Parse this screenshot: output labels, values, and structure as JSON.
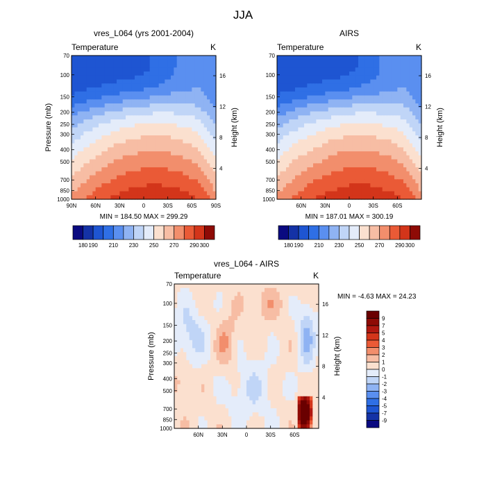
{
  "figure": {
    "title": "JJA"
  },
  "chart_data": [
    {
      "type": "heatmap",
      "title": "vres_L064 (yrs 2001-2004)",
      "left_label": "Temperature",
      "unit_label": "K",
      "ylabel": "Pressure (mb)",
      "ylabel_right": "Height (km)",
      "xlim": [
        -90,
        90
      ],
      "ylim": [
        1000,
        70
      ],
      "x_ticks": [
        {
          "value": -90,
          "label": "90N"
        },
        {
          "value": -60,
          "label": "60N"
        },
        {
          "value": -30,
          "label": "30N"
        },
        {
          "value": 0,
          "label": "0"
        },
        {
          "value": 30,
          "label": "30S"
        },
        {
          "value": 60,
          "label": "60S"
        },
        {
          "value": 90,
          "label": "90S"
        }
      ],
      "y_ticks": [
        {
          "value": 70,
          "label": "70"
        },
        {
          "value": 100,
          "label": "100"
        },
        {
          "value": 150,
          "label": "150"
        },
        {
          "value": 200,
          "label": "200"
        },
        {
          "value": 250,
          "label": "250"
        },
        {
          "value": 300,
          "label": "300"
        },
        {
          "value": 400,
          "label": "400"
        },
        {
          "value": 500,
          "label": "500"
        },
        {
          "value": 700,
          "label": "700"
        },
        {
          "value": 850,
          "label": "850"
        },
        {
          "value": 1000,
          "label": "1000"
        }
      ],
      "right_ticks": [
        {
          "value": 4,
          "label": "4"
        },
        {
          "value": 8,
          "label": "8"
        },
        {
          "value": 12,
          "label": "12"
        },
        {
          "value": 16,
          "label": "16"
        }
      ],
      "stats": "MIN = 184.50   MAX = 299.29",
      "min": 184.5,
      "max": 299.29,
      "levels": [
        180,
        190,
        200,
        210,
        220,
        230,
        240,
        250,
        260,
        270,
        280,
        290,
        300
      ],
      "colorbar_labels": [
        {
          "level_index": 0,
          "label": "180"
        },
        {
          "level_index": 1,
          "label": "190"
        },
        {
          "level_index": 3,
          "label": "210"
        },
        {
          "level_index": 5,
          "label": "230"
        },
        {
          "level_index": 7,
          "label": "250"
        },
        {
          "level_index": 9,
          "label": "270"
        },
        {
          "level_index": 11,
          "label": "290"
        },
        {
          "level_index": 12,
          "label": "300"
        }
      ]
    },
    {
      "type": "heatmap",
      "title": "AIRS",
      "left_label": "Temperature",
      "unit_label": "K",
      "ylabel": "",
      "ylabel_right": "Height (km)",
      "xlim": [
        -90,
        90
      ],
      "ylim": [
        1000,
        70
      ],
      "x_ticks": [
        {
          "value": -60,
          "label": "60N"
        },
        {
          "value": -30,
          "label": "30N"
        },
        {
          "value": 0,
          "label": "0"
        },
        {
          "value": 30,
          "label": "30S"
        },
        {
          "value": 60,
          "label": "60S"
        }
      ],
      "y_ticks": [
        {
          "value": 70,
          "label": "70"
        },
        {
          "value": 100,
          "label": "100"
        },
        {
          "value": 150,
          "label": "150"
        },
        {
          "value": 200,
          "label": "200"
        },
        {
          "value": 250,
          "label": "250"
        },
        {
          "value": 300,
          "label": "300"
        },
        {
          "value": 400,
          "label": "400"
        },
        {
          "value": 500,
          "label": "500"
        },
        {
          "value": 700,
          "label": "700"
        },
        {
          "value": 850,
          "label": "850"
        },
        {
          "value": 1000,
          "label": "1000"
        }
      ],
      "right_ticks": [
        {
          "value": 4,
          "label": "4"
        },
        {
          "value": 8,
          "label": "8"
        },
        {
          "value": 12,
          "label": "12"
        },
        {
          "value": 16,
          "label": "16"
        }
      ],
      "stats": "MIN = 187.01   MAX = 300.19",
      "min": 187.01,
      "max": 300.19,
      "levels": [
        180,
        190,
        200,
        210,
        220,
        230,
        240,
        250,
        260,
        270,
        280,
        290,
        300
      ],
      "colorbar_labels": [
        {
          "level_index": 0,
          "label": "180"
        },
        {
          "level_index": 1,
          "label": "190"
        },
        {
          "level_index": 3,
          "label": "210"
        },
        {
          "level_index": 5,
          "label": "230"
        },
        {
          "level_index": 7,
          "label": "250"
        },
        {
          "level_index": 9,
          "label": "270"
        },
        {
          "level_index": 11,
          "label": "290"
        },
        {
          "level_index": 12,
          "label": "300"
        }
      ]
    },
    {
      "type": "heatmap",
      "title": "vres_L064 - AIRS",
      "left_label": "Temperature",
      "unit_label": "K",
      "ylabel": "Pressure (mb)",
      "ylabel_right": "Height (km)",
      "xlim": [
        -90,
        90
      ],
      "ylim": [
        1000,
        70
      ],
      "x_ticks": [
        {
          "value": -60,
          "label": "60N"
        },
        {
          "value": -30,
          "label": "30N"
        },
        {
          "value": 0,
          "label": "0"
        },
        {
          "value": 30,
          "label": "30S"
        },
        {
          "value": 60,
          "label": "60S"
        }
      ],
      "y_ticks": [
        {
          "value": 70,
          "label": "70"
        },
        {
          "value": 100,
          "label": "100"
        },
        {
          "value": 150,
          "label": "150"
        },
        {
          "value": 200,
          "label": "200"
        },
        {
          "value": 250,
          "label": "250"
        },
        {
          "value": 300,
          "label": "300"
        },
        {
          "value": 400,
          "label": "400"
        },
        {
          "value": 500,
          "label": "500"
        },
        {
          "value": 700,
          "label": "700"
        },
        {
          "value": 850,
          "label": "850"
        },
        {
          "value": 1000,
          "label": "1000"
        }
      ],
      "right_ticks": [
        {
          "value": 4,
          "label": "4"
        },
        {
          "value": 8,
          "label": "8"
        },
        {
          "value": 12,
          "label": "12"
        },
        {
          "value": 16,
          "label": "16"
        }
      ],
      "stats": "MIN =  -4.63   MAX =  24.23",
      "min": -4.63,
      "max": 24.23,
      "levels": [
        -9,
        -7,
        -5,
        -4,
        -3,
        -2,
        -1,
        0,
        1,
        2,
        3,
        4,
        5,
        7,
        9
      ],
      "colorbar_labels": [
        {
          "level_index": 0,
          "label": "-9"
        },
        {
          "level_index": 1,
          "label": "-7"
        },
        {
          "level_index": 2,
          "label": "-5"
        },
        {
          "level_index": 3,
          "label": "-4"
        },
        {
          "level_index": 4,
          "label": "-3"
        },
        {
          "level_index": 5,
          "label": "-2"
        },
        {
          "level_index": 6,
          "label": "-1"
        },
        {
          "level_index": 7,
          "label": "0"
        },
        {
          "level_index": 8,
          "label": "1"
        },
        {
          "level_index": 9,
          "label": "2"
        },
        {
          "level_index": 10,
          "label": "3"
        },
        {
          "level_index": 11,
          "label": "4"
        },
        {
          "level_index": 12,
          "label": "5"
        },
        {
          "level_index": 13,
          "label": "7"
        },
        {
          "level_index": 14,
          "label": "9"
        }
      ]
    }
  ]
}
